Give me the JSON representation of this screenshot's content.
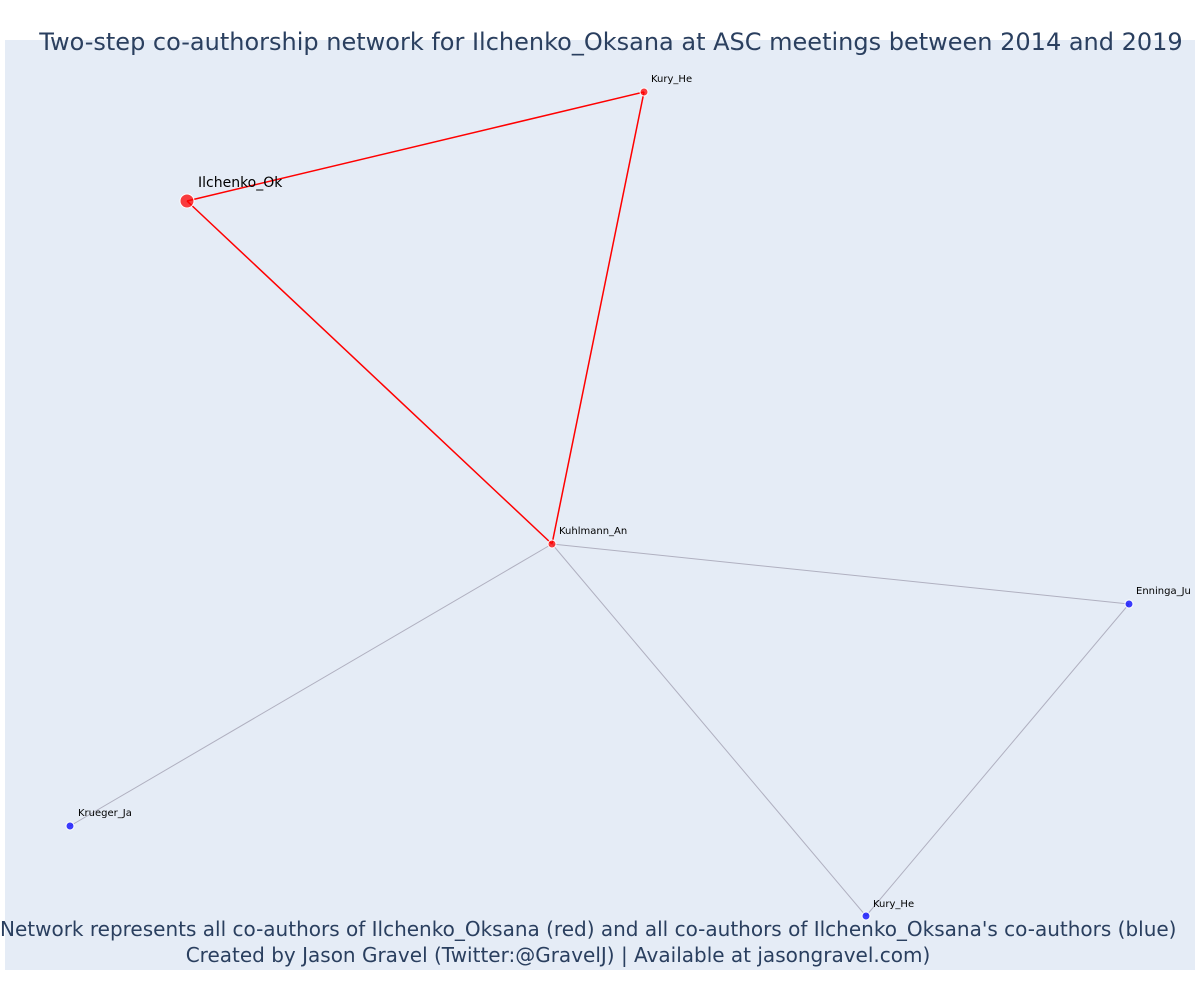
{
  "title": "Two-step co-authorship network for Ilchenko_Oksana at ASC meetings between 2014 and 2019",
  "caption": {
    "line1": "Network represents all co-authors of Ilchenko_Oksana (red) and all co-authors of Ilchenko_Oksana's co-authors (blue)",
    "line2": "Created by Jason Gravel (Twitter:@GravelJ) | Available at jasongravel.com)"
  },
  "colors": {
    "plot_background": "#e5ecf6",
    "first_degree": "#ff0000",
    "second_degree": "#0000ff",
    "edge_second_degree": "#b0b0c0",
    "text": "#2a3f5f"
  },
  "nodes": [
    {
      "id": "ilchenko",
      "label": "Ilchenko_Ok",
      "group": "focal"
    },
    {
      "id": "kury_top",
      "label": "Kury_He",
      "group": "coauthor"
    },
    {
      "id": "kuhlmann",
      "label": "Kuhlmann_An",
      "group": "coauthor"
    },
    {
      "id": "enninga",
      "label": "Enninga_Ju",
      "group": "second"
    },
    {
      "id": "krueger",
      "label": "Krueger_Ja",
      "group": "second"
    },
    {
      "id": "kury_bottom",
      "label": "Kury_He",
      "group": "second"
    }
  ],
  "edges": [
    {
      "source": "ilchenko",
      "target": "kury_top",
      "group": "first"
    },
    {
      "source": "ilchenko",
      "target": "kuhlmann",
      "group": "first"
    },
    {
      "source": "kury_top",
      "target": "kuhlmann",
      "group": "first"
    },
    {
      "source": "kuhlmann",
      "target": "enninga",
      "group": "second"
    },
    {
      "source": "kuhlmann",
      "target": "krueger",
      "group": "second"
    },
    {
      "source": "kuhlmann",
      "target": "kury_bottom",
      "group": "second"
    },
    {
      "source": "enninga",
      "target": "kury_bottom",
      "group": "second"
    }
  ]
}
